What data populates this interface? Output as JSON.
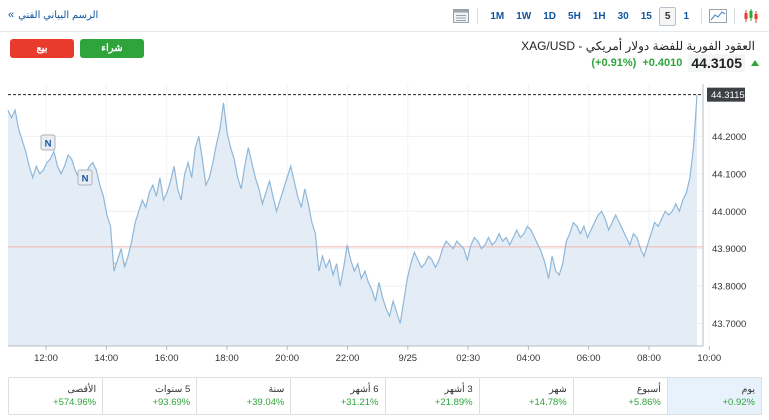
{
  "toolbar": {
    "tech_chart_link": "الرسم البياني الفني",
    "chevron": "»",
    "timeframes": [
      {
        "label": "1M",
        "active": false
      },
      {
        "label": "1W",
        "active": false
      },
      {
        "label": "1D",
        "active": false
      },
      {
        "label": "5H",
        "active": false
      },
      {
        "label": "1H",
        "active": false
      },
      {
        "label": "30",
        "active": false
      },
      {
        "label": "15",
        "active": false
      },
      {
        "label": "5",
        "active": true
      },
      {
        "label": "1",
        "active": false
      }
    ],
    "icons": [
      "table-view-icon",
      "area-chart-icon",
      "candlestick-chart-icon"
    ]
  },
  "header": {
    "sell_label": "بيع",
    "buy_label": "شراء",
    "title": "XAG/USD - العقود الفورية للفضة دولار أمريكي",
    "price": "44.3105",
    "change": "+0.4010",
    "change_pct": "(+0.91%)",
    "colors": {
      "up": "#2ea43b",
      "down": "#e83b2e",
      "link": "#1256a0"
    }
  },
  "chart_data": {
    "type": "area",
    "watermark": "Investing.com",
    "x_tick_labels": [
      "12:00",
      "14:00",
      "16:00",
      "18:00",
      "20:00",
      "22:00",
      "9/25",
      "02:30",
      "04:00",
      "06:00",
      "08:00",
      "10:00"
    ],
    "y_tick_labels": [
      "44.2000",
      "44.1000",
      "44.0000",
      "43.9000",
      "43.8000",
      "43.7000"
    ],
    "ylim": [
      43.64,
      44.34
    ],
    "last_price_label": "44.3115",
    "last_price": 44.3115,
    "reference_line": 43.905,
    "news_markers": [
      "N",
      "N"
    ],
    "colors": {
      "line": "#8fb7d9",
      "fill": "#e4edf6",
      "reference": "#f0b4b0",
      "last": "#222222"
    },
    "series": [
      {
        "values": [
          44.27,
          44.25,
          44.27,
          44.22,
          44.19,
          44.16,
          44.12,
          44.09,
          44.12,
          44.1,
          44.11,
          44.13,
          44.14,
          44.16,
          44.12,
          44.1,
          44.12,
          44.15,
          44.14,
          44.11,
          44.09,
          44.08,
          44.1,
          44.12,
          44.13,
          44.11,
          44.07,
          44.04,
          43.99,
          43.96,
          43.84,
          43.87,
          43.9,
          43.85,
          43.88,
          43.92,
          43.97,
          44.0,
          44.03,
          44.01,
          44.05,
          44.07,
          44.04,
          44.09,
          44.03,
          44.05,
          44.08,
          44.12,
          44.06,
          44.03,
          44.1,
          44.13,
          44.09,
          44.17,
          44.2,
          44.14,
          44.07,
          44.09,
          44.13,
          44.18,
          44.22,
          44.29,
          44.21,
          44.17,
          44.14,
          44.09,
          44.06,
          44.12,
          44.17,
          44.13,
          44.09,
          44.06,
          44.02,
          44.05,
          44.08,
          44.04,
          44.0,
          44.03,
          44.06,
          44.09,
          44.12,
          44.08,
          44.04,
          44.01,
          44.06,
          44.02,
          43.97,
          43.94,
          43.84,
          43.88,
          43.85,
          43.87,
          43.83,
          43.86,
          43.8,
          43.85,
          43.91,
          43.87,
          43.84,
          43.86,
          43.82,
          43.84,
          43.81,
          43.79,
          43.76,
          43.81,
          43.77,
          43.74,
          43.72,
          43.76,
          43.73,
          43.7,
          43.76,
          43.82,
          43.86,
          43.89,
          43.87,
          43.85,
          43.86,
          43.88,
          43.87,
          43.85,
          43.87,
          43.9,
          43.92,
          43.91,
          43.9,
          43.92,
          43.91,
          43.9,
          43.87,
          43.91,
          43.93,
          43.92,
          43.9,
          43.91,
          43.93,
          43.91,
          43.92,
          43.94,
          43.92,
          43.93,
          43.91,
          43.93,
          43.95,
          43.93,
          43.94,
          43.96,
          43.95,
          43.93,
          43.91,
          43.89,
          43.86,
          43.82,
          43.88,
          43.84,
          43.83,
          43.86,
          43.92,
          43.94,
          43.97,
          43.96,
          43.94,
          43.96,
          43.93,
          43.95,
          43.97,
          43.99,
          44.0,
          43.98,
          43.95,
          43.97,
          43.99,
          43.97,
          43.95,
          43.93,
          43.91,
          43.94,
          43.93,
          43.9,
          43.88,
          43.91,
          43.94,
          43.97,
          43.96,
          43.98,
          44.0,
          43.99,
          44.0,
          44.02,
          44.0,
          44.03,
          44.05,
          44.09,
          44.17,
          44.31
        ]
      }
    ]
  },
  "periods": [
    {
      "label": "الأقصى",
      "value": "+574.96%",
      "active": false
    },
    {
      "label": "5 سنوات",
      "value": "+93.69%",
      "active": false
    },
    {
      "label": "سنة",
      "value": "+39.04%",
      "active": false
    },
    {
      "label": "6 أشهر",
      "value": "+31.21%",
      "active": false
    },
    {
      "label": "3 أشهر",
      "value": "+21.89%",
      "active": false
    },
    {
      "label": "شهر",
      "value": "+14.78%",
      "active": false
    },
    {
      "label": "أسبوع",
      "value": "+5.86%",
      "active": false
    },
    {
      "label": "يوم",
      "value": "+0.92%",
      "active": true
    }
  ]
}
